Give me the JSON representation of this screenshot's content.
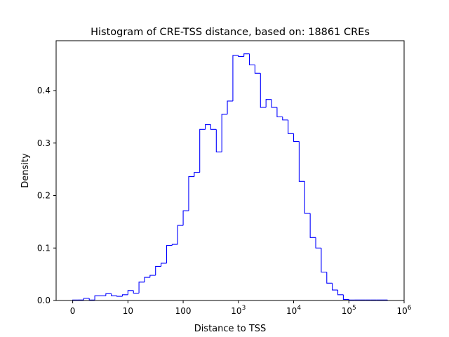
{
  "chart_data": {
    "type": "histogram",
    "title": "Histogram of CRE-TSS distance, based on: 18861 CREs",
    "xlabel": "Distance to TSS",
    "ylabel": "Density",
    "x_scale": "symlog-like (log10 of distance)",
    "xlim": [
      -0.3,
      6
    ],
    "ylim": [
      0,
      0.495
    ],
    "x_ticks": [
      {
        "value": 0,
        "label": "0"
      },
      {
        "value": 1,
        "label": "10"
      },
      {
        "value": 2,
        "label": "100"
      },
      {
        "value": 3,
        "label": "10",
        "exponent": "3"
      },
      {
        "value": 4,
        "label": "10",
        "exponent": "4"
      },
      {
        "value": 5,
        "label": "10",
        "exponent": "5"
      },
      {
        "value": 6,
        "label": "10",
        "exponent": "6"
      }
    ],
    "y_ticks": [
      {
        "value": 0.0,
        "label": "0.0"
      },
      {
        "value": 0.1,
        "label": "0.1"
      },
      {
        "value": 0.2,
        "label": "0.2"
      },
      {
        "value": 0.3,
        "label": "0.3"
      },
      {
        "value": 0.4,
        "label": "0.4"
      }
    ],
    "bin_edges": [
      0,
      0.1,
      0.2,
      0.3,
      0.4,
      0.5,
      0.6,
      0.7,
      0.8,
      0.9,
      1.0,
      1.1,
      1.2,
      1.3,
      1.4,
      1.5,
      1.6,
      1.7,
      1.8,
      1.9,
      2.0,
      2.1,
      2.2,
      2.3,
      2.4,
      2.5,
      2.6,
      2.7,
      2.8,
      2.9,
      3.0,
      3.1,
      3.2,
      3.3,
      3.4,
      3.5,
      3.6,
      3.7,
      3.8,
      3.9,
      4.0,
      4.1,
      4.2,
      4.3,
      4.4,
      4.5,
      4.6,
      4.7,
      4.8,
      4.9,
      5.0,
      5.1,
      5.2,
      5.3,
      5.4,
      5.5,
      5.6,
      5.7
    ],
    "values": [
      0.001,
      0.001,
      0.004,
      0.001,
      0.009,
      0.009,
      0.013,
      0.009,
      0.008,
      0.011,
      0.019,
      0.014,
      0.035,
      0.044,
      0.048,
      0.065,
      0.071,
      0.105,
      0.107,
      0.143,
      0.171,
      0.236,
      0.244,
      0.326,
      0.335,
      0.326,
      0.283,
      0.355,
      0.38,
      0.467,
      0.465,
      0.47,
      0.449,
      0.433,
      0.368,
      0.383,
      0.368,
      0.35,
      0.344,
      0.318,
      0.303,
      0.227,
      0.166,
      0.12,
      0.1,
      0.054,
      0.033,
      0.02,
      0.011,
      0.002,
      0.001,
      0.001,
      0.001,
      0.001,
      0.001,
      0.001,
      0.001
    ],
    "color": "#0000ff",
    "grid": false
  }
}
